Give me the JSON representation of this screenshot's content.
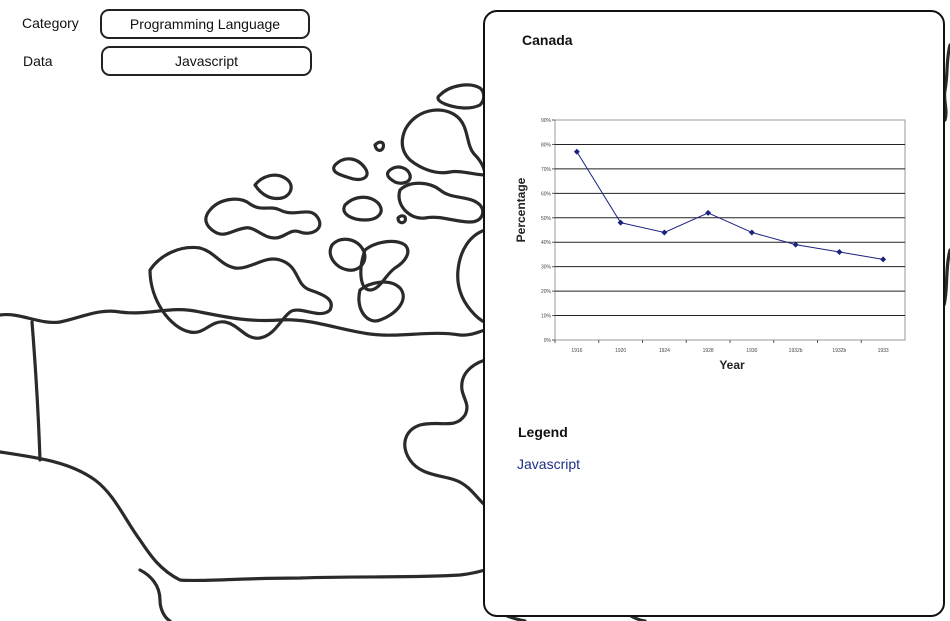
{
  "form": {
    "category_label": "Category",
    "category_value": "Programming Language",
    "data_label": "Data",
    "data_value": "Javascript"
  },
  "panel": {
    "title": "Canada",
    "legend_title": "Legend",
    "legend_items": [
      "Javascript"
    ]
  },
  "colors": {
    "series": "#1a237e",
    "legend_text": "#1f2d87"
  },
  "chart_data": {
    "type": "line",
    "title": "",
    "xlabel": "Year",
    "ylabel": "Percentage",
    "categories": [
      "1916",
      "1920",
      "1924",
      "1928",
      "1930",
      "1932b",
      "1932b",
      "1933"
    ],
    "series": [
      {
        "name": "Javascript",
        "values": [
          77,
          48,
          44,
          52,
          44,
          39,
          36,
          33
        ]
      }
    ],
    "y_ticks": [
      "0%",
      "10%",
      "20%",
      "30%",
      "40%",
      "50%",
      "60%",
      "70%",
      "80%",
      "90%"
    ],
    "ylim": [
      0,
      90
    ],
    "grid": true,
    "marker": "diamond"
  }
}
